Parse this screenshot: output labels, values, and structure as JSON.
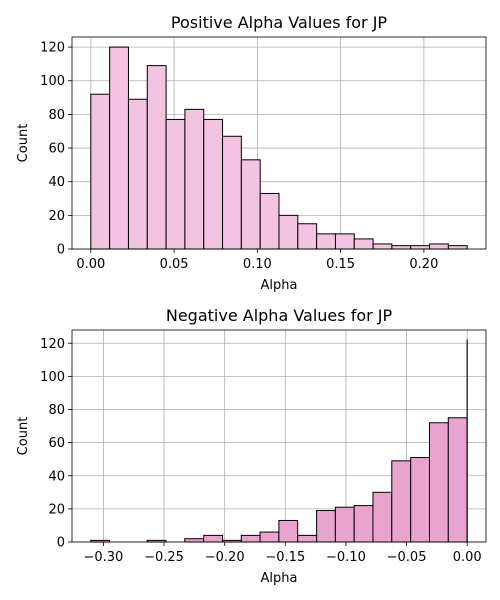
{
  "chart_data": [
    {
      "type": "bar",
      "subtype": "histogram",
      "title": "Positive Alpha Values for JP",
      "xlabel": "Alpha",
      "ylabel": "Count",
      "color": "#f2c4e1",
      "grid": true,
      "xlim": [
        -0.0113,
        0.2373
      ],
      "ylim": [
        0,
        126
      ],
      "xticks": [
        0.0,
        0.05,
        0.1,
        0.15,
        0.2
      ],
      "xtick_labels": [
        "0.00",
        "0.05",
        "0.10",
        "0.15",
        "0.20"
      ],
      "yticks": [
        0,
        20,
        40,
        60,
        80,
        100,
        120
      ],
      "ytick_labels": [
        "0",
        "20",
        "40",
        "60",
        "80",
        "100",
        "120"
      ],
      "bins": [
        {
          "x0": 0.0,
          "x1": 0.0113,
          "value": 92
        },
        {
          "x0": 0.0113,
          "x1": 0.0226,
          "value": 120
        },
        {
          "x0": 0.0226,
          "x1": 0.0339,
          "value": 89
        },
        {
          "x0": 0.0339,
          "x1": 0.0452,
          "value": 109
        },
        {
          "x0": 0.0452,
          "x1": 0.0565,
          "value": 77
        },
        {
          "x0": 0.0565,
          "x1": 0.0678,
          "value": 83
        },
        {
          "x0": 0.0678,
          "x1": 0.0791,
          "value": 77
        },
        {
          "x0": 0.0791,
          "x1": 0.0904,
          "value": 67
        },
        {
          "x0": 0.0904,
          "x1": 0.1017,
          "value": 53
        },
        {
          "x0": 0.1017,
          "x1": 0.113,
          "value": 33
        },
        {
          "x0": 0.113,
          "x1": 0.1243,
          "value": 20
        },
        {
          "x0": 0.1243,
          "x1": 0.1356,
          "value": 15
        },
        {
          "x0": 0.1356,
          "x1": 0.1469,
          "value": 9
        },
        {
          "x0": 0.1469,
          "x1": 0.1582,
          "value": 9
        },
        {
          "x0": 0.1582,
          "x1": 0.1695,
          "value": 6
        },
        {
          "x0": 0.1695,
          "x1": 0.1808,
          "value": 3
        },
        {
          "x0": 0.1808,
          "x1": 0.1921,
          "value": 2
        },
        {
          "x0": 0.1921,
          "x1": 0.2034,
          "value": 2
        },
        {
          "x0": 0.2034,
          "x1": 0.2147,
          "value": 3
        },
        {
          "x0": 0.2147,
          "x1": 0.226,
          "value": 2
        }
      ]
    },
    {
      "type": "bar",
      "subtype": "histogram",
      "title": "Negative Alpha Values for JP",
      "xlabel": "Alpha",
      "ylabel": "Count",
      "color": "#e9a3cf",
      "grid": true,
      "xlim": [
        -0.3259,
        0.0155
      ],
      "ylim": [
        0,
        128
      ],
      "xticks": [
        -0.3,
        -0.25,
        -0.2,
        -0.15,
        -0.1,
        -0.05,
        0.0
      ],
      "xtick_labels": [
        "−0.30",
        "−0.25",
        "−0.20",
        "−0.15",
        "−0.10",
        "−0.05",
        "0.00"
      ],
      "yticks": [
        0,
        20,
        40,
        60,
        80,
        100,
        120
      ],
      "ytick_labels": [
        "0",
        "20",
        "40",
        "60",
        "80",
        "100",
        "120"
      ],
      "bins": [
        {
          "x0": -0.3104,
          "x1": -0.2949,
          "value": 1
        },
        {
          "x0": -0.2949,
          "x1": -0.2794,
          "value": 0
        },
        {
          "x0": -0.2794,
          "x1": -0.2639,
          "value": 0
        },
        {
          "x0": -0.2639,
          "x1": -0.2484,
          "value": 1
        },
        {
          "x0": -0.2484,
          "x1": -0.2329,
          "value": 0
        },
        {
          "x0": -0.2329,
          "x1": -0.2173,
          "value": 2
        },
        {
          "x0": -0.2173,
          "x1": -0.2018,
          "value": 4
        },
        {
          "x0": -0.2018,
          "x1": -0.1863,
          "value": 1
        },
        {
          "x0": -0.1863,
          "x1": -0.1708,
          "value": 4
        },
        {
          "x0": -0.1708,
          "x1": -0.1553,
          "value": 6
        },
        {
          "x0": -0.1553,
          "x1": -0.1398,
          "value": 13
        },
        {
          "x0": -0.1398,
          "x1": -0.1242,
          "value": 4
        },
        {
          "x0": -0.1242,
          "x1": -0.1087,
          "value": 19
        },
        {
          "x0": -0.1087,
          "x1": -0.0932,
          "value": 21
        },
        {
          "x0": -0.0932,
          "x1": -0.0777,
          "value": 22
        },
        {
          "x0": -0.0777,
          "x1": -0.0622,
          "value": 30
        },
        {
          "x0": -0.0622,
          "x1": -0.0466,
          "value": 49
        },
        {
          "x0": -0.0466,
          "x1": -0.0311,
          "value": 51
        },
        {
          "x0": -0.0311,
          "x1": -0.0156,
          "value": 72
        },
        {
          "x0": -0.0156,
          "x1": -0.0001,
          "value": 75
        },
        {
          "x0": -0.0001,
          "x1": 0.0,
          "value": 122
        }
      ]
    }
  ]
}
